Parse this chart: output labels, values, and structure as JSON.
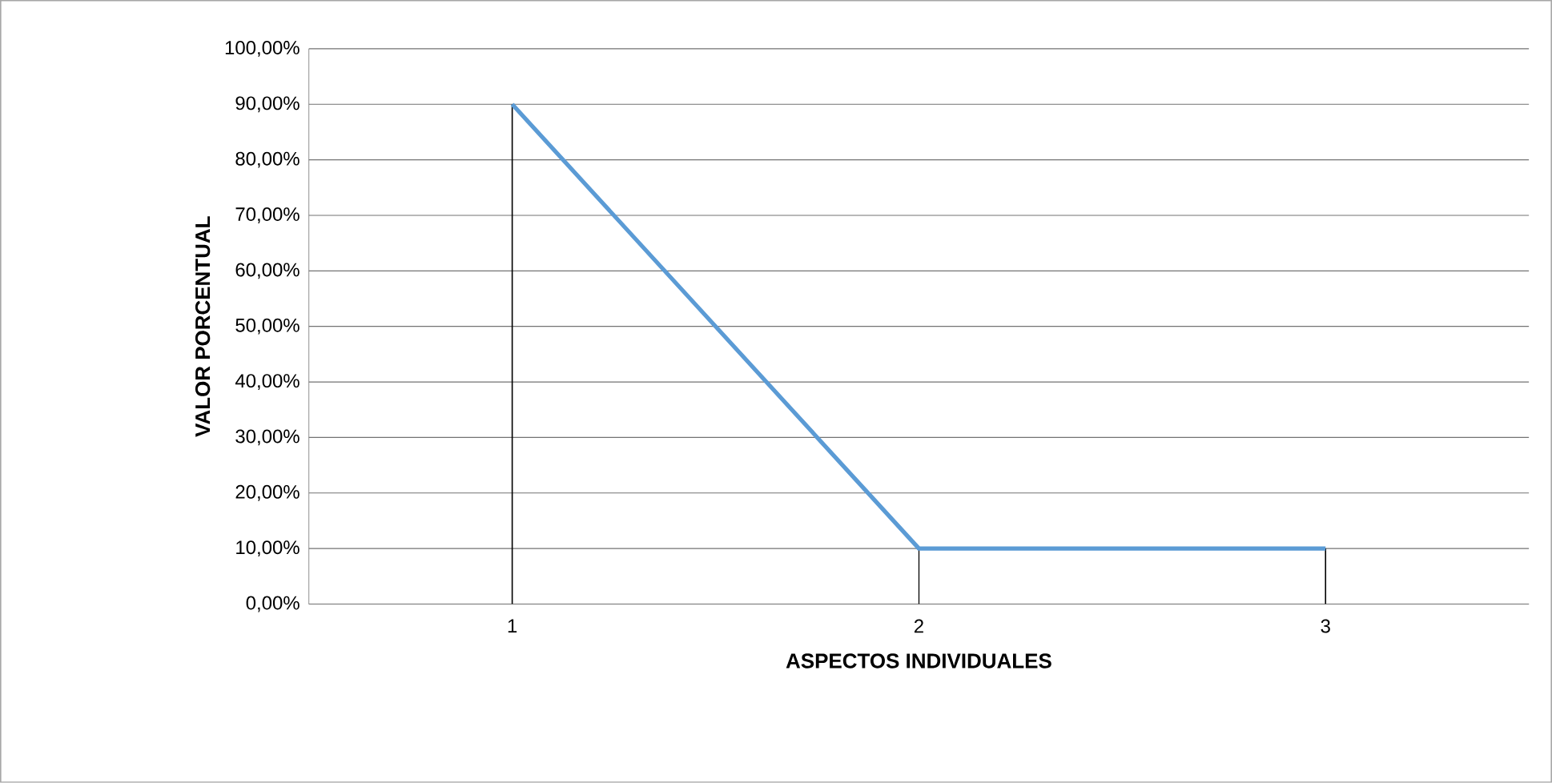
{
  "chart_data": {
    "type": "line",
    "xlabel": "ASPECTOS INDIVIDUALES",
    "ylabel": "VALOR PORCENTUAL",
    "categories": [
      "1",
      "2",
      "3"
    ],
    "series": [
      {
        "color": "#5b9bd5",
        "values": [
          90,
          10,
          10
        ],
        "errors": [
          [
            0,
            90
          ],
          [
            0,
            10
          ],
          [
            0,
            10
          ]
        ]
      }
    ],
    "ylim": [
      0,
      100
    ],
    "yticks": [
      {
        "value": 0,
        "label": "0,00%"
      },
      {
        "value": 10,
        "label": "10,00%"
      },
      {
        "value": 20,
        "label": "20,00%"
      },
      {
        "value": 30,
        "label": "30,00%"
      },
      {
        "value": 40,
        "label": "40,00%"
      },
      {
        "value": 50,
        "label": "50,00%"
      },
      {
        "value": 60,
        "label": "60,00%"
      },
      {
        "value": 70,
        "label": "70,00%"
      },
      {
        "value": 80,
        "label": "80,00%"
      },
      {
        "value": 90,
        "label": "90,00%"
      },
      {
        "value": 100,
        "label": "100,00%"
      }
    ],
    "grid": "y",
    "marker": "none",
    "line_style": "solid"
  }
}
